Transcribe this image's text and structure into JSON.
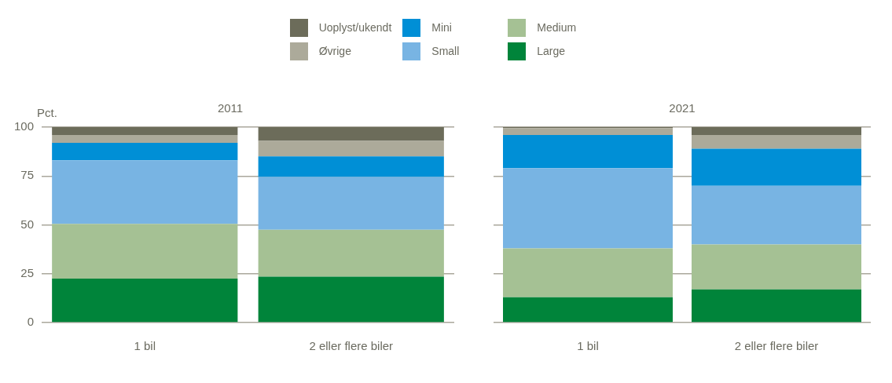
{
  "chart_data": [
    {
      "type": "bar",
      "title": "2011",
      "ylabel": "Pct.",
      "stacked": true,
      "categories": [
        "1 bil",
        "2 eller flere biler"
      ],
      "ylim": [
        0,
        100
      ],
      "yticks": [
        0,
        25,
        50,
        75,
        100
      ],
      "grid": "y",
      "legend": "top",
      "series": [
        {
          "name": "Large",
          "color": "#00843a",
          "values": [
            22.5,
            23.5
          ]
        },
        {
          "name": "Medium",
          "color": "#a5c194",
          "values": [
            28,
            24
          ]
        },
        {
          "name": "Small",
          "color": "#78b4e3",
          "values": [
            32.5,
            27
          ]
        },
        {
          "name": "Mini",
          "color": "#008fd6",
          "values": [
            9,
            10.5
          ]
        },
        {
          "name": "Øvrige",
          "color": "#acaa9a",
          "values": [
            4,
            8
          ]
        },
        {
          "name": "Uoplyst/ukendt",
          "color": "#6c6c5a",
          "values": [
            4,
            7
          ]
        }
      ]
    },
    {
      "type": "bar",
      "title": "2021",
      "stacked": true,
      "categories": [
        "1 bil",
        "2 eller flere biler"
      ],
      "ylim": [
        0,
        100
      ],
      "yticks": [
        0,
        25,
        50,
        75,
        100
      ],
      "grid": "y",
      "tick_labels": "x",
      "series": [
        {
          "color": "#00843a",
          "values": [
            13,
            17
          ]
        },
        {
          "color": "#a5c194",
          "values": [
            25,
            23
          ]
        },
        {
          "color": "#78b4e3",
          "values": [
            41,
            30
          ]
        },
        {
          "color": "#008fd6",
          "values": [
            17,
            19
          ]
        },
        {
          "color": "#acaa9a",
          "values": [
            3.5,
            7
          ]
        },
        {
          "color": "#6c6c5a",
          "values": [
            0.5,
            4
          ]
        }
      ]
    }
  ]
}
